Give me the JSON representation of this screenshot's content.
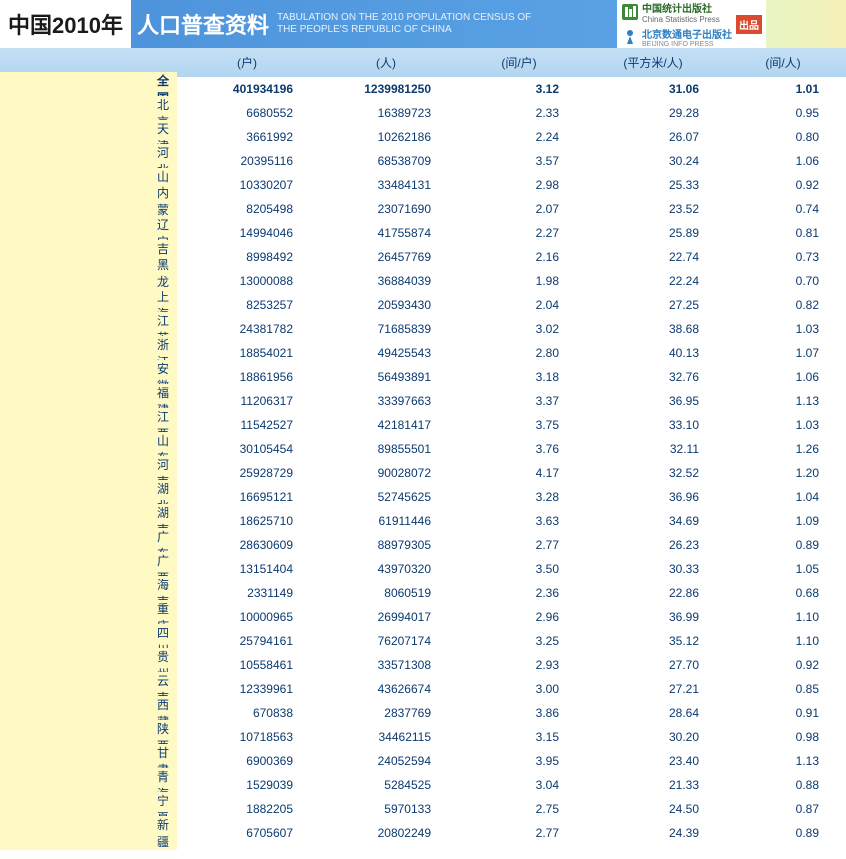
{
  "header": {
    "year_label": "中国2010年",
    "title_cn": "人口普查资料",
    "title_en_line1": "TABULATION ON THE 2010 POPULATION CENSUS OF",
    "title_en_line2": "THE PEOPLE'S REPUBLIC OF CHINA",
    "logo1_cn": "中国统计出版社",
    "logo1_en": "China Statistics Press",
    "logo2_cn": "北京数通电子出版社",
    "logo2_en": "BEIJING INFO PRESS",
    "pub_badge": "出品"
  },
  "columns": {
    "region": "",
    "c1": "(户)",
    "c2": "(人)",
    "c3": "(间/户)",
    "c4": "(平方米/人)",
    "c5": "(间/人)"
  },
  "colors": {
    "header_bg_start": "#4a90d9",
    "header_bg_end": "#5fa8e8",
    "col_header_bg": "#b3d5f0",
    "region_bg": "#fff9c4",
    "text_color": "#0b3a70"
  },
  "rows": [
    {
      "region": "全　国",
      "c1": "401934196",
      "c2": "1239981250",
      "c3": "3.12",
      "c4": "31.06",
      "c5": "1.01",
      "national": true
    },
    {
      "region": "北　京",
      "c1": "6680552",
      "c2": "16389723",
      "c3": "2.33",
      "c4": "29.28",
      "c5": "0.95"
    },
    {
      "region": "天　津",
      "c1": "3661992",
      "c2": "10262186",
      "c3": "2.24",
      "c4": "26.07",
      "c5": "0.80"
    },
    {
      "region": "河　北",
      "c1": "20395116",
      "c2": "68538709",
      "c3": "3.57",
      "c4": "30.24",
      "c5": "1.06"
    },
    {
      "region": "山　西",
      "c1": "10330207",
      "c2": "33484131",
      "c3": "2.98",
      "c4": "25.33",
      "c5": "0.92"
    },
    {
      "region": "内蒙古",
      "c1": "8205498",
      "c2": "23071690",
      "c3": "2.07",
      "c4": "23.52",
      "c5": "0.74"
    },
    {
      "region": "辽　宁",
      "c1": "14994046",
      "c2": "41755874",
      "c3": "2.27",
      "c4": "25.89",
      "c5": "0.81"
    },
    {
      "region": "吉　林",
      "c1": "8998492",
      "c2": "26457769",
      "c3": "2.16",
      "c4": "22.74",
      "c5": "0.73"
    },
    {
      "region": "黑龙江",
      "c1": "13000088",
      "c2": "36884039",
      "c3": "1.98",
      "c4": "22.24",
      "c5": "0.70"
    },
    {
      "region": "上　海",
      "c1": "8253257",
      "c2": "20593430",
      "c3": "2.04",
      "c4": "27.25",
      "c5": "0.82"
    },
    {
      "region": "江　苏",
      "c1": "24381782",
      "c2": "71685839",
      "c3": "3.02",
      "c4": "38.68",
      "c5": "1.03"
    },
    {
      "region": "浙　江",
      "c1": "18854021",
      "c2": "49425543",
      "c3": "2.80",
      "c4": "40.13",
      "c5": "1.07"
    },
    {
      "region": "安　徽",
      "c1": "18861956",
      "c2": "56493891",
      "c3": "3.18",
      "c4": "32.76",
      "c5": "1.06"
    },
    {
      "region": "福　建",
      "c1": "11206317",
      "c2": "33397663",
      "c3": "3.37",
      "c4": "36.95",
      "c5": "1.13"
    },
    {
      "region": "江　西",
      "c1": "11542527",
      "c2": "42181417",
      "c3": "3.75",
      "c4": "33.10",
      "c5": "1.03"
    },
    {
      "region": "山　东",
      "c1": "30105454",
      "c2": "89855501",
      "c3": "3.76",
      "c4": "32.11",
      "c5": "1.26"
    },
    {
      "region": "河　南",
      "c1": "25928729",
      "c2": "90028072",
      "c3": "4.17",
      "c4": "32.52",
      "c5": "1.20"
    },
    {
      "region": "湖　北",
      "c1": "16695121",
      "c2": "52745625",
      "c3": "3.28",
      "c4": "36.96",
      "c5": "1.04"
    },
    {
      "region": "湖　南",
      "c1": "18625710",
      "c2": "61911446",
      "c3": "3.63",
      "c4": "34.69",
      "c5": "1.09"
    },
    {
      "region": "广　东",
      "c1": "28630609",
      "c2": "88979305",
      "c3": "2.77",
      "c4": "26.23",
      "c5": "0.89"
    },
    {
      "region": "广　西",
      "c1": "13151404",
      "c2": "43970320",
      "c3": "3.50",
      "c4": "30.33",
      "c5": "1.05"
    },
    {
      "region": "海　南",
      "c1": "2331149",
      "c2": "8060519",
      "c3": "2.36",
      "c4": "22.86",
      "c5": "0.68"
    },
    {
      "region": "重　庆",
      "c1": "10000965",
      "c2": "26994017",
      "c3": "2.96",
      "c4": "36.99",
      "c5": "1.10"
    },
    {
      "region": "四　川",
      "c1": "25794161",
      "c2": "76207174",
      "c3": "3.25",
      "c4": "35.12",
      "c5": "1.10"
    },
    {
      "region": "贵　州",
      "c1": "10558461",
      "c2": "33571308",
      "c3": "2.93",
      "c4": "27.70",
      "c5": "0.92"
    },
    {
      "region": "云　南",
      "c1": "12339961",
      "c2": "43626674",
      "c3": "3.00",
      "c4": "27.21",
      "c5": "0.85"
    },
    {
      "region": "西　藏",
      "c1": "670838",
      "c2": "2837769",
      "c3": "3.86",
      "c4": "28.64",
      "c5": "0.91"
    },
    {
      "region": "陕　西",
      "c1": "10718563",
      "c2": "34462115",
      "c3": "3.15",
      "c4": "30.20",
      "c5": "0.98"
    },
    {
      "region": "甘　肃",
      "c1": "6900369",
      "c2": "24052594",
      "c3": "3.95",
      "c4": "23.40",
      "c5": "1.13"
    },
    {
      "region": "青　海",
      "c1": "1529039",
      "c2": "5284525",
      "c3": "3.04",
      "c4": "21.33",
      "c5": "0.88"
    },
    {
      "region": "宁　夏",
      "c1": "1882205",
      "c2": "5970133",
      "c3": "2.75",
      "c4": "24.50",
      "c5": "0.87"
    },
    {
      "region": "新　疆",
      "c1": "6705607",
      "c2": "20802249",
      "c3": "2.77",
      "c4": "24.39",
      "c5": "0.89"
    }
  ]
}
